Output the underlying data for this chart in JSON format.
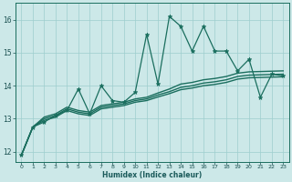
{
  "xlabel": "Humidex (Indice chaleur)",
  "ylabel": "",
  "background_color": "#cce8e8",
  "grid_color": "#9ecece",
  "line_color": "#1a6e5e",
  "xlim": [
    -0.5,
    23.5
  ],
  "ylim": [
    11.7,
    16.5
  ],
  "xticks": [
    0,
    1,
    2,
    3,
    4,
    5,
    6,
    7,
    8,
    9,
    10,
    11,
    12,
    13,
    14,
    15,
    16,
    17,
    18,
    19,
    20,
    21,
    22,
    23
  ],
  "yticks": [
    12,
    13,
    14,
    15,
    16
  ],
  "series": [
    {
      "x": [
        0,
        1,
        2,
        3,
        4,
        5,
        6,
        7,
        8,
        9,
        10,
        11,
        12,
        13,
        14,
        15,
        16,
        17,
        18,
        19,
        20,
        21,
        22,
        23
      ],
      "y": [
        11.9,
        12.75,
        12.9,
        13.1,
        13.25,
        13.9,
        13.15,
        14.0,
        13.55,
        13.5,
        13.8,
        15.55,
        14.05,
        16.1,
        15.8,
        15.05,
        15.8,
        15.05,
        15.05,
        14.45,
        14.8,
        13.65,
        14.35,
        14.3
      ],
      "marker": "*",
      "markersize": 3.5,
      "linewidth": 0.9
    },
    {
      "x": [
        0,
        1,
        2,
        3,
        4,
        5,
        6,
        7,
        8,
        9,
        10,
        11,
        12,
        13,
        14,
        15,
        16,
        17,
        18,
        19,
        20,
        21,
        22,
        23
      ],
      "y": [
        11.9,
        12.75,
        13.05,
        13.15,
        13.35,
        13.25,
        13.2,
        13.4,
        13.45,
        13.5,
        13.6,
        13.65,
        13.78,
        13.9,
        14.05,
        14.1,
        14.18,
        14.22,
        14.28,
        14.38,
        14.42,
        14.43,
        14.44,
        14.45
      ],
      "marker": null,
      "markersize": 0,
      "linewidth": 1.0
    },
    {
      "x": [
        0,
        1,
        2,
        3,
        4,
        5,
        6,
        7,
        8,
        9,
        10,
        11,
        12,
        13,
        14,
        15,
        16,
        17,
        18,
        19,
        20,
        21,
        22,
        23
      ],
      "y": [
        11.9,
        12.75,
        13.0,
        13.1,
        13.3,
        13.2,
        13.15,
        13.35,
        13.4,
        13.45,
        13.55,
        13.6,
        13.72,
        13.82,
        13.95,
        14.0,
        14.08,
        14.12,
        14.18,
        14.28,
        14.32,
        14.33,
        14.34,
        14.35
      ],
      "marker": null,
      "markersize": 0,
      "linewidth": 1.0
    },
    {
      "x": [
        0,
        1,
        2,
        3,
        4,
        5,
        6,
        7,
        8,
        9,
        10,
        11,
        12,
        13,
        14,
        15,
        16,
        17,
        18,
        19,
        20,
        21,
        22,
        23
      ],
      "y": [
        11.9,
        12.75,
        12.95,
        13.05,
        13.25,
        13.15,
        13.1,
        13.3,
        13.35,
        13.4,
        13.5,
        13.55,
        13.66,
        13.76,
        13.88,
        13.93,
        14.0,
        14.04,
        14.1,
        14.2,
        14.24,
        14.25,
        14.26,
        14.27
      ],
      "marker": null,
      "markersize": 0,
      "linewidth": 1.0
    }
  ]
}
